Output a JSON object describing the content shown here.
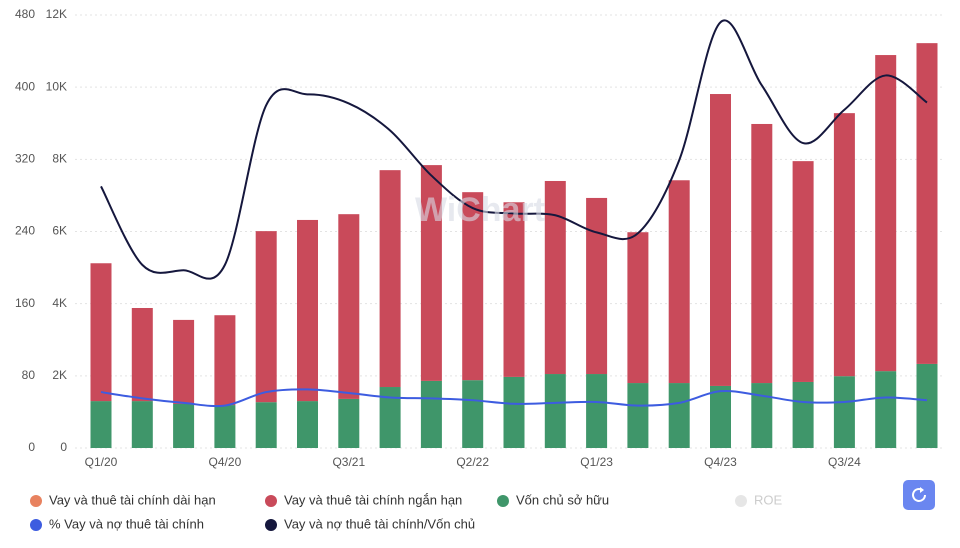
{
  "chart_data": {
    "type": "bar",
    "watermark": "WiChart",
    "categories": [
      "Q1/20",
      null,
      null,
      "Q4/20",
      null,
      null,
      "Q3/21",
      null,
      null,
      "Q2/22",
      null,
      null,
      "Q1/23",
      null,
      null,
      "Q4/23",
      null,
      null,
      "Q3/24",
      null,
      null
    ],
    "ylim": [
      0,
      480
    ],
    "yticks": [
      0,
      80,
      160,
      240,
      320,
      400,
      480
    ],
    "y2lim": [
      0,
      12000
    ],
    "y2ticks": [
      0,
      {
        "value": 2000,
        "label": "2K"
      },
      {
        "value": 4000,
        "label": "4K"
      },
      {
        "value": 6000,
        "label": "6K"
      },
      {
        "value": 8000,
        "label": "8K"
      },
      {
        "value": 10000,
        "label": "10K"
      },
      {
        "value": 12000,
        "label": "12K"
      }
    ],
    "grid": true,
    "series": [
      {
        "name": "Vay và thuê tài chính dài hạn",
        "color": "#e8825f",
        "type": "bar",
        "axis": "y2",
        "values": [
          null,
          null,
          null,
          null,
          null,
          null,
          null,
          null,
          null,
          null,
          null,
          null,
          null,
          null,
          null,
          null,
          null,
          null,
          null,
          null,
          null
        ]
      },
      {
        "name": "Vay và thuê tài chính ngắn hạn",
        "color": "#c94a5a",
        "type": "bar",
        "axis": "y2",
        "values": [
          3820,
          2580,
          2330,
          2490,
          4740,
          5020,
          5120,
          6010,
          5980,
          5210,
          4840,
          5350,
          4880,
          4180,
          5620,
          8090,
          7180,
          6120,
          7290,
          8760,
          8890
        ]
      },
      {
        "name": "Vốn chủ sở hữu",
        "color": "#3f966a",
        "type": "bar",
        "axis": "y2",
        "values": [
          1300,
          1300,
          1220,
          1190,
          1270,
          1300,
          1360,
          1690,
          1860,
          1880,
          1970,
          2050,
          2050,
          1800,
          1800,
          1720,
          1800,
          1830,
          1990,
          2130,
          2330
        ]
      },
      {
        "name": "ROE",
        "color": "#e6e6e6",
        "type": "line",
        "hidden": true,
        "values": [
          null,
          null,
          null,
          null,
          null,
          null,
          null,
          null,
          null,
          null,
          null,
          null,
          null,
          null,
          null,
          null,
          null,
          null,
          null,
          null,
          null
        ]
      },
      {
        "name": "% Vay và nợ thuê tài chính",
        "color": "#3d5ce0",
        "type": "line",
        "values": [
          62,
          55,
          50,
          47,
          62,
          65,
          61,
          56,
          55,
          53,
          49,
          50,
          51,
          47,
          50,
          63,
          58,
          51,
          51,
          56,
          53
        ]
      },
      {
        "name": "Vay và nợ thuê tài chính/Vốn chủ",
        "color": "#15173d",
        "type": "line",
        "values": [
          290,
          203,
          197,
          203,
          380,
          392,
          382,
          352,
          302,
          266,
          260,
          258,
          239,
          238,
          319,
          472,
          402,
          338,
          375,
          413,
          383
        ]
      }
    ]
  }
}
